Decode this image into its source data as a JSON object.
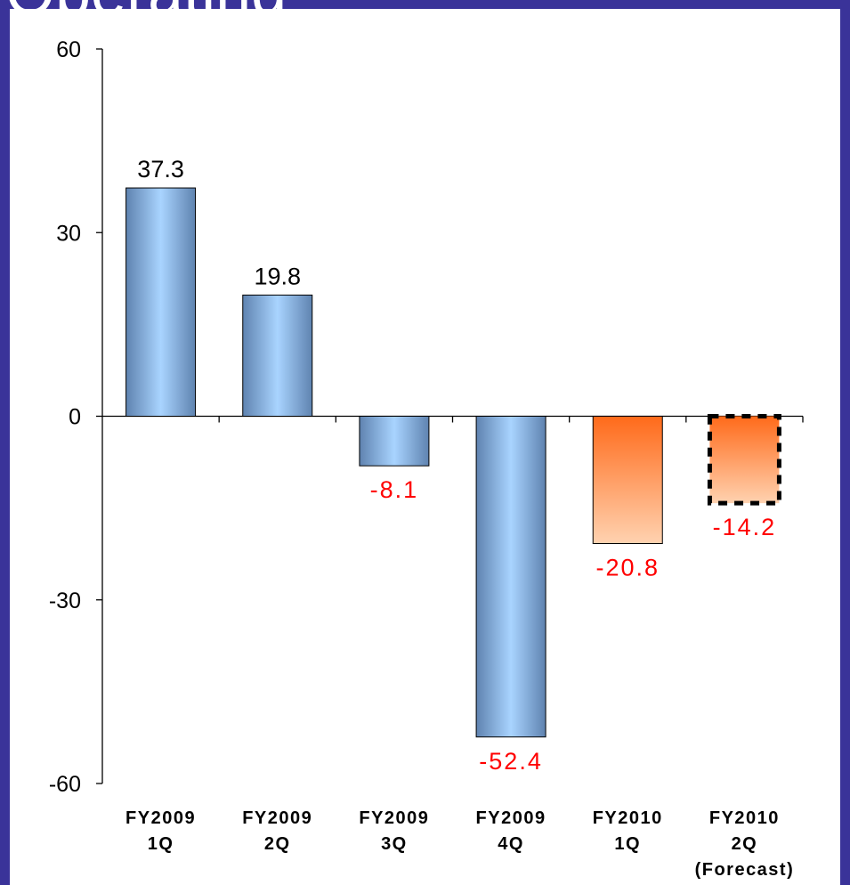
{
  "page": {
    "title": "Operating",
    "colors": {
      "background": "#3a3399",
      "panel": "#ffffff",
      "actual_bar_dark": "#5f83b0",
      "actual_bar_light": "#a9d4ff",
      "fy2010_bar_top": "#ff6a1a",
      "fy2010_bar_bottom": "#ffd2b0",
      "negative_label": "#ff0000",
      "positive_label": "#000000"
    }
  },
  "chart_data": {
    "type": "bar",
    "categories": [
      [
        "FY2009",
        "1Q"
      ],
      [
        "FY2009",
        "2Q"
      ],
      [
        "FY2009",
        "3Q"
      ],
      [
        "FY2009",
        "4Q"
      ],
      [
        "FY2010",
        "1Q"
      ],
      [
        "FY2010",
        "2Q",
        "(Forecast)"
      ]
    ],
    "values": [
      37.3,
      19.8,
      -8.1,
      -52.4,
      -20.8,
      -14.2
    ],
    "value_labels": [
      "37.3",
      "19.8",
      "-8.1",
      "-52.4",
      "-20.8",
      "-14.2"
    ],
    "forecast": [
      false,
      false,
      false,
      false,
      false,
      true
    ],
    "ylim": [
      -60,
      60
    ],
    "yticks": [
      60,
      30,
      0,
      -30,
      -60
    ],
    "ytick_labels": [
      "60",
      "30",
      "0",
      "-30",
      "-60"
    ],
    "grid": false,
    "legend": "none"
  }
}
